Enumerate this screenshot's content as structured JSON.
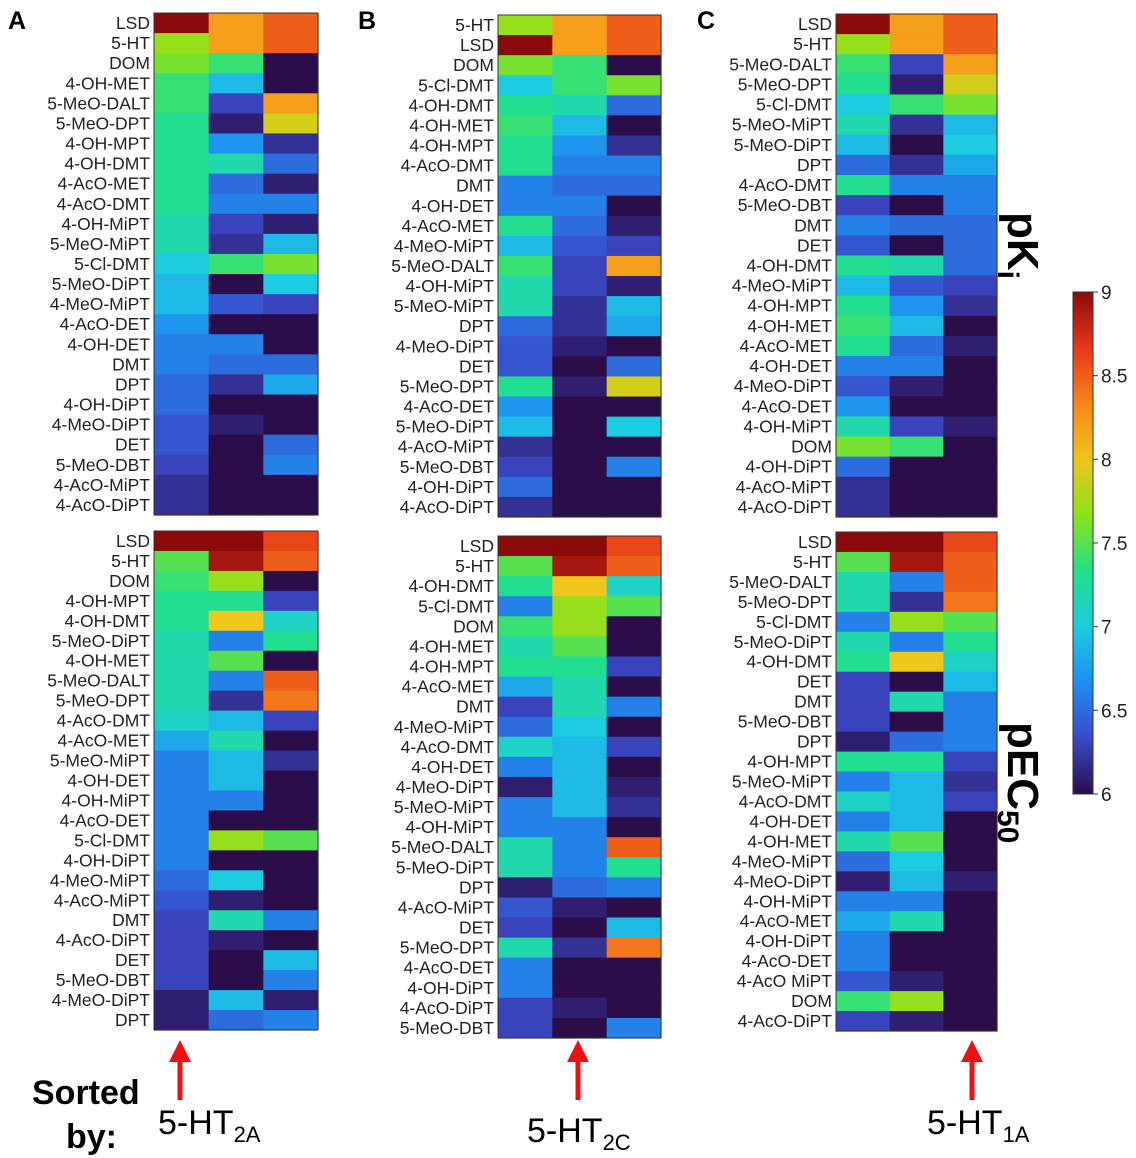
{
  "chart_data": [
    {
      "type": "heatmap",
      "panel": "A",
      "measure": "pK_i",
      "sorted_by": "5-HT2A",
      "rows": [
        "LSD",
        "5-HT",
        "DOM",
        "4-OH-MET",
        "5-MeO-DALT",
        "5-MeO-DPT",
        "4-OH-MPT",
        "4-OH-DMT",
        "4-AcO-MET",
        "4-AcO-DMT",
        "4-OH-MiPT",
        "5-MeO-MiPT",
        "5-Cl-DMT",
        "5-MeO-DiPT",
        "4-MeO-MiPT",
        "4-AcO-DET",
        "4-OH-DET",
        "DMT",
        "DPT",
        "4-OH-DiPT",
        "4-MeO-DiPT",
        "DET",
        "5-MeO-DBT",
        "4-AcO-MiPT",
        "4-AcO-DiPT"
      ],
      "values": [
        [
          9.0,
          8.2,
          8.5
        ],
        [
          7.7,
          8.2,
          8.5
        ],
        [
          7.6,
          7.4,
          6.0
        ],
        [
          7.4,
          6.9,
          6.0
        ],
        [
          7.4,
          6.3,
          8.2
        ],
        [
          7.3,
          6.1,
          7.9
        ],
        [
          7.3,
          6.7,
          6.2
        ],
        [
          7.3,
          7.2,
          6.5
        ],
        [
          7.3,
          6.5,
          6.1
        ],
        [
          7.3,
          6.6,
          6.6
        ],
        [
          7.2,
          6.3,
          6.1
        ],
        [
          7.2,
          6.2,
          6.9
        ],
        [
          7.0,
          7.4,
          7.6
        ],
        [
          6.9,
          6.0,
          7.0
        ],
        [
          6.9,
          6.4,
          6.3
        ],
        [
          6.7,
          6.0,
          6.0
        ],
        [
          6.6,
          6.6,
          6.0
        ],
        [
          6.6,
          6.5,
          6.5
        ],
        [
          6.5,
          6.2,
          6.8
        ],
        [
          6.5,
          6.0,
          6.0
        ],
        [
          6.4,
          6.1,
          6.0
        ],
        [
          6.4,
          6.0,
          6.5
        ],
        [
          6.3,
          6.0,
          6.6
        ],
        [
          6.2,
          6.0,
          6.0
        ],
        [
          6.2,
          6.0,
          6.0
        ]
      ]
    },
    {
      "type": "heatmap",
      "panel": "A",
      "measure": "pEC_50",
      "sorted_by": "5-HT2A",
      "rows": [
        "LSD",
        "5-HT",
        "DOM",
        "4-OH-MPT",
        "4-OH-DMT",
        "5-MeO-DiPT",
        "4-OH-MET",
        "5-MeO-DALT",
        "5-MeO-DPT",
        "4-AcO-DMT",
        "4-AcO-MET",
        "5-MeO-MiPT",
        "4-OH-DET",
        "4-OH-MiPT",
        "4-AcO-DET",
        "5-Cl-DMT",
        "4-OH-DiPT",
        "4-MeO-MiPT",
        "4-AcO-MiPT",
        "DMT",
        "4-AcO-DiPT",
        "DET",
        "5-MeO-DBT",
        "4-MeO-DiPT",
        "DPT"
      ],
      "values": [
        [
          9.0,
          9.0,
          8.6
        ],
        [
          7.5,
          8.9,
          8.5
        ],
        [
          7.4,
          7.7,
          6.0
        ],
        [
          7.3,
          7.3,
          6.3
        ],
        [
          7.3,
          8.0,
          7.1
        ],
        [
          7.2,
          6.6,
          7.3
        ],
        [
          7.2,
          7.5,
          6.0
        ],
        [
          7.2,
          6.6,
          8.5
        ],
        [
          7.2,
          6.2,
          8.4
        ],
        [
          7.1,
          6.9,
          6.3
        ],
        [
          6.8,
          7.2,
          6.0
        ],
        [
          6.6,
          6.9,
          6.2
        ],
        [
          6.6,
          6.9,
          6.0
        ],
        [
          6.6,
          6.6,
          6.0
        ],
        [
          6.6,
          6.0,
          6.0
        ],
        [
          6.6,
          7.7,
          7.5
        ],
        [
          6.6,
          6.0,
          6.0
        ],
        [
          6.5,
          7.0,
          6.0
        ],
        [
          6.4,
          6.1,
          6.0
        ],
        [
          6.3,
          7.2,
          6.6
        ],
        [
          6.3,
          6.1,
          6.0
        ],
        [
          6.3,
          6.0,
          6.9
        ],
        [
          6.3,
          6.0,
          6.6
        ],
        [
          6.1,
          6.9,
          6.1
        ],
        [
          6.1,
          6.5,
          6.6
        ]
      ]
    },
    {
      "type": "heatmap",
      "panel": "B",
      "measure": "pK_i",
      "sorted_by": "5-HT2C",
      "rows": [
        "5-HT",
        "LSD",
        "DOM",
        "5-Cl-DMT",
        "4-OH-DMT",
        "4-OH-MET",
        "4-OH-MPT",
        "4-AcO-DMT",
        "DMT",
        "4-OH-DET",
        "4-AcO-MET",
        "4-MeO-MiPT",
        "5-MeO-DALT",
        "4-OH-MiPT",
        "5-MeO-MiPT",
        "DPT",
        "4-MeO-DiPT",
        "DET",
        "5-MeO-DPT",
        "4-AcO-DET",
        "5-MeO-DiPT",
        "4-AcO-MiPT",
        "5-MeO-DBT",
        "4-OH-DiPT",
        "4-AcO-DiPT"
      ],
      "values": [
        [
          7.7,
          8.2,
          8.5
        ],
        [
          9.0,
          8.2,
          8.5
        ],
        [
          7.6,
          7.4,
          6.0
        ],
        [
          7.0,
          7.4,
          7.6
        ],
        [
          7.3,
          7.2,
          6.5
        ],
        [
          7.4,
          6.9,
          6.0
        ],
        [
          7.3,
          6.7,
          6.2
        ],
        [
          7.3,
          6.6,
          6.6
        ],
        [
          6.6,
          6.5,
          6.5
        ],
        [
          6.6,
          6.6,
          6.0
        ],
        [
          7.3,
          6.5,
          6.1
        ],
        [
          6.9,
          6.4,
          6.3
        ],
        [
          7.4,
          6.3,
          8.2
        ],
        [
          7.2,
          6.3,
          6.1
        ],
        [
          7.2,
          6.2,
          6.9
        ],
        [
          6.5,
          6.2,
          6.8
        ],
        [
          6.4,
          6.1,
          6.0
        ],
        [
          6.4,
          6.0,
          6.5
        ],
        [
          7.3,
          6.1,
          7.9
        ],
        [
          6.7,
          6.0,
          6.0
        ],
        [
          6.9,
          6.0,
          7.0
        ],
        [
          6.2,
          6.0,
          6.0
        ],
        [
          6.3,
          6.0,
          6.6
        ],
        [
          6.5,
          6.0,
          6.0
        ],
        [
          6.2,
          6.0,
          6.0
        ]
      ]
    },
    {
      "type": "heatmap",
      "panel": "B",
      "measure": "pEC_50",
      "sorted_by": "5-HT2C",
      "rows": [
        "LSD",
        "5-HT",
        "4-OH-DMT",
        "5-Cl-DMT",
        "DOM",
        "4-OH-MET",
        "4-OH-MPT",
        "4-AcO-MET",
        "DMT",
        "4-MeO-MiPT",
        "4-AcO-DMT",
        "4-OH-DET",
        "4-MeO-DiPT",
        "5-MeO-MiPT",
        "4-OH-MiPT",
        "5-MeO-DALT",
        "5-MeO-DiPT",
        "DPT",
        "4-AcO-MiPT",
        "DET",
        "5-MeO-DPT",
        "4-AcO-DET",
        "4-OH-DiPT",
        "4-AcO-DiPT",
        "5-MeO-DBT"
      ],
      "values": [
        [
          9.0,
          9.0,
          8.6
        ],
        [
          7.5,
          8.9,
          8.5
        ],
        [
          7.3,
          8.0,
          7.1
        ],
        [
          6.6,
          7.7,
          7.5
        ],
        [
          7.4,
          7.7,
          6.0
        ],
        [
          7.2,
          7.5,
          6.0
        ],
        [
          7.3,
          7.3,
          6.3
        ],
        [
          6.8,
          7.2,
          6.0
        ],
        [
          6.3,
          7.2,
          6.6
        ],
        [
          6.5,
          7.0,
          6.0
        ],
        [
          7.1,
          6.9,
          6.3
        ],
        [
          6.6,
          6.9,
          6.0
        ],
        [
          6.1,
          6.9,
          6.1
        ],
        [
          6.6,
          6.9,
          6.2
        ],
        [
          6.6,
          6.6,
          6.0
        ],
        [
          7.2,
          6.6,
          8.5
        ],
        [
          7.2,
          6.6,
          7.3
        ],
        [
          6.1,
          6.5,
          6.6
        ],
        [
          6.4,
          6.1,
          6.0
        ],
        [
          6.3,
          6.0,
          6.9
        ],
        [
          7.2,
          6.2,
          8.4
        ],
        [
          6.6,
          6.0,
          6.0
        ],
        [
          6.6,
          6.0,
          6.0
        ],
        [
          6.3,
          6.1,
          6.0
        ],
        [
          6.3,
          6.0,
          6.6
        ]
      ]
    },
    {
      "type": "heatmap",
      "panel": "C",
      "measure": "pK_i",
      "sorted_by": "5-HT1A",
      "rows": [
        "LSD",
        "5-HT",
        "5-MeO-DALT",
        "5-MeO-DPT",
        "5-Cl-DMT",
        "5-MeO-MiPT",
        "5-MeO-DiPT",
        "DPT",
        "4-AcO-DMT",
        "5-MeO-DBT",
        "DMT",
        "DET",
        "4-OH-DMT",
        "4-MeO-MiPT",
        "4-OH-MPT",
        "4-OH-MET",
        "4-AcO-MET",
        "4-OH-DET",
        "4-MeO-DiPT",
        "4-AcO-DET",
        "4-OH-MiPT",
        "DOM",
        "4-OH-DiPT",
        "4-AcO-MiPT",
        "4-AcO-DiPT"
      ],
      "values": [
        [
          9.0,
          8.2,
          8.5
        ],
        [
          7.7,
          8.2,
          8.5
        ],
        [
          7.4,
          6.3,
          8.2
        ],
        [
          7.3,
          6.1,
          7.9
        ],
        [
          7.0,
          7.4,
          7.6
        ],
        [
          7.2,
          6.2,
          6.9
        ],
        [
          6.9,
          6.0,
          7.0
        ],
        [
          6.5,
          6.2,
          6.8
        ],
        [
          7.3,
          6.6,
          6.6
        ],
        [
          6.3,
          6.0,
          6.6
        ],
        [
          6.6,
          6.5,
          6.5
        ],
        [
          6.4,
          6.0,
          6.5
        ],
        [
          7.3,
          7.2,
          6.5
        ],
        [
          6.9,
          6.4,
          6.3
        ],
        [
          7.3,
          6.7,
          6.2
        ],
        [
          7.4,
          6.9,
          6.0
        ],
        [
          7.3,
          6.5,
          6.1
        ],
        [
          6.6,
          6.6,
          6.0
        ],
        [
          6.4,
          6.1,
          6.0
        ],
        [
          6.7,
          6.0,
          6.0
        ],
        [
          7.2,
          6.3,
          6.1
        ],
        [
          7.6,
          7.4,
          6.0
        ],
        [
          6.5,
          6.0,
          6.0
        ],
        [
          6.2,
          6.0,
          6.0
        ],
        [
          6.2,
          6.0,
          6.0
        ]
      ]
    },
    {
      "type": "heatmap",
      "panel": "C",
      "measure": "pEC_50",
      "sorted_by": "5-HT1A",
      "rows": [
        "LSD",
        "5-HT",
        "5-MeO-DALT",
        "5-MeO-DPT",
        "5-Cl-DMT",
        "5-MeO-DiPT",
        "4-OH-DMT",
        "DET",
        "DMT",
        "5-MeO-DBT",
        "DPT",
        "4-OH-MPT",
        "5-MeO-MiPT",
        "4-AcO-DMT",
        "4-OH-DET",
        "4-OH-MET",
        "4-MeO-MiPT",
        "4-MeO-DiPT",
        "4-OH-MiPT",
        "4-AcO-MET",
        "4-OH-DiPT",
        "4-AcO-DET",
        "4-AcO MiPT",
        "DOM",
        "4-AcO-DiPT"
      ],
      "values": [
        [
          9.0,
          9.0,
          8.6
        ],
        [
          7.5,
          8.9,
          8.5
        ],
        [
          7.2,
          6.6,
          8.5
        ],
        [
          7.2,
          6.2,
          8.4
        ],
        [
          6.6,
          7.7,
          7.5
        ],
        [
          7.2,
          6.6,
          7.3
        ],
        [
          7.3,
          8.0,
          7.1
        ],
        [
          6.3,
          6.0,
          6.9
        ],
        [
          6.3,
          7.2,
          6.6
        ],
        [
          6.3,
          6.0,
          6.6
        ],
        [
          6.1,
          6.5,
          6.6
        ],
        [
          7.3,
          7.3,
          6.3
        ],
        [
          6.6,
          6.9,
          6.2
        ],
        [
          7.1,
          6.9,
          6.3
        ],
        [
          6.6,
          6.9,
          6.0
        ],
        [
          7.2,
          7.5,
          6.0
        ],
        [
          6.5,
          7.0,
          6.0
        ],
        [
          6.1,
          6.9,
          6.1
        ],
        [
          6.6,
          6.6,
          6.0
        ],
        [
          6.8,
          7.2,
          6.0
        ],
        [
          6.6,
          6.0,
          6.0
        ],
        [
          6.6,
          6.0,
          6.0
        ],
        [
          6.4,
          6.1,
          6.0
        ],
        [
          7.4,
          7.7,
          6.0
        ],
        [
          6.3,
          6.1,
          6.0
        ]
      ]
    }
  ],
  "colorbar": {
    "min": 6,
    "max": 9,
    "ticks": [
      "9",
      "8.5",
      "8",
      "7.5",
      "7",
      "6.5",
      "6"
    ],
    "colormap": "jet"
  },
  "side_labels": {
    "pki_main": "pK",
    "pki_sub": "i",
    "pec_main": "pEC",
    "pec_sub": "50"
  },
  "panel_letters": [
    "A",
    "B",
    "C"
  ],
  "bottom": {
    "sorted_line1": "Sorted",
    "sorted_line2": "by:",
    "labels": [
      {
        "main": "5-HT",
        "sub": "2A"
      },
      {
        "main": "5-HT",
        "sub": "2C"
      },
      {
        "main": "5-HT",
        "sub": "1A"
      }
    ],
    "arrow_color": "#ee1111"
  }
}
